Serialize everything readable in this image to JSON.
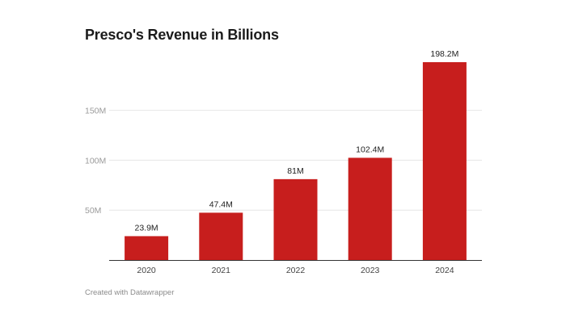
{
  "chart_data": {
    "type": "bar",
    "title": "Presco's Revenue in Billions",
    "categories": [
      "2020",
      "2021",
      "2022",
      "2023",
      "2024"
    ],
    "values": [
      23.9,
      47.4,
      81,
      102.4,
      198.2
    ],
    "value_labels": [
      "23.9M",
      "47.4M",
      "81M",
      "102.4M",
      "198.2M"
    ],
    "y_ticks": [
      50,
      100,
      150
    ],
    "y_tick_labels": [
      "50M",
      "100M",
      "150M"
    ],
    "ylim": [
      0,
      198.2
    ],
    "xlabel": "",
    "ylabel": "",
    "grid": true,
    "bar_color": "#c71e1d",
    "credit": "Created with Datawrapper"
  }
}
